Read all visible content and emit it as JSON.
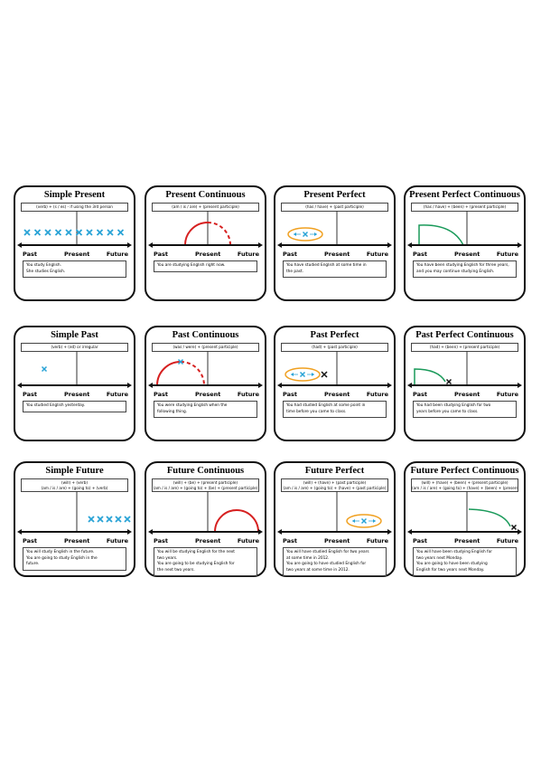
{
  "cards": [
    {
      "title": "Simple Present",
      "formula": [
        "(verb) + (s / es) - if using the 3rd person"
      ],
      "timeline": [
        "Past",
        "Present",
        "Future"
      ],
      "example": [
        "You study English.",
        "She studies English."
      ]
    },
    {
      "title": "Present Continuous",
      "formula": [
        "(am / is / are) + (present participle)"
      ],
      "timeline": [
        "Past",
        "Present",
        "Future"
      ],
      "example": [
        "You are studying English right now."
      ]
    },
    {
      "title": "Present Perfect",
      "formula": [
        "(has / have) + (past participle)"
      ],
      "timeline": [
        "Past",
        "Present",
        "Future"
      ],
      "example": [
        "You have studied English at some time in",
        "the past."
      ]
    },
    {
      "title": "Present Perfect Continuous",
      "formula": [
        "(has / have) + (been) + (present participle)"
      ],
      "timeline": [
        "Past",
        "Present",
        "Future"
      ],
      "example": [
        "You have been studying English for three years,",
        "and you may continue studying English."
      ]
    },
    {
      "title": "Simple Past",
      "formula": [
        "(verb) + (ed) or irregular"
      ],
      "timeline": [
        "Past",
        "Present",
        "Future"
      ],
      "example": [
        "You studied English yesterday."
      ]
    },
    {
      "title": "Past Continuous",
      "formula": [
        "(was / were) + (present participle)"
      ],
      "timeline": [
        "Past",
        "Present",
        "Future"
      ],
      "example": [
        "You were studying English when the",
        "following thing."
      ]
    },
    {
      "title": "Past Perfect",
      "formula": [
        "(had) + (past participle)"
      ],
      "timeline": [
        "Past",
        "Present",
        "Future"
      ],
      "example": [
        "You had studied English at some point in",
        "time before you came to class."
      ]
    },
    {
      "title": "Past Perfect Continuous",
      "formula": [
        "(had) + (been) + (present participle)"
      ],
      "timeline": [
        "Past",
        "Present",
        "Future"
      ],
      "example": [
        "You had been studying English for two",
        "years before you came to class."
      ]
    },
    {
      "title": "Simple Future",
      "formula": [
        "(will) + (verb)",
        "(am / is / are) + (going to) + (verb)"
      ],
      "timeline": [
        "Past",
        "Present",
        "Future"
      ],
      "example": [
        "You will study English in the future.",
        "You are going to study English in the",
        "future."
      ]
    },
    {
      "title": "Future Continuous",
      "formula": [
        "(will) + (be) + (present participle)",
        "(am / is / are) + (going to) + (be) + (present participle)"
      ],
      "timeline": [
        "Past",
        "Present",
        "Future"
      ],
      "example": [
        "You will be studying English for the next",
        "two years.",
        "You are going to be studying English for",
        "the next two years."
      ]
    },
    {
      "title": "Future Perfect",
      "formula": [
        "(will) + (have) + (past participle)",
        "(am / is / are) + (going to) + (have) + (past participle)"
      ],
      "timeline": [
        "Past",
        "Present",
        "Future"
      ],
      "example": [
        "You will have studied English for two years",
        "at some time in 2012.",
        "You are going to have studied English for",
        "two years at some time in 2012."
      ]
    },
    {
      "title": "Future Perfect Continuous",
      "formula": [
        "(will) + (have) + (been) + (present participle)",
        "(am / is / are) + (going to) + (have) + (been) + (present participle)"
      ],
      "timeline": [
        "Past",
        "Present",
        "Future"
      ],
      "example": [
        "You will have been studying English for",
        "two years next Monday.",
        "You are going to have been studying",
        "English for two years next Monday."
      ]
    }
  ]
}
